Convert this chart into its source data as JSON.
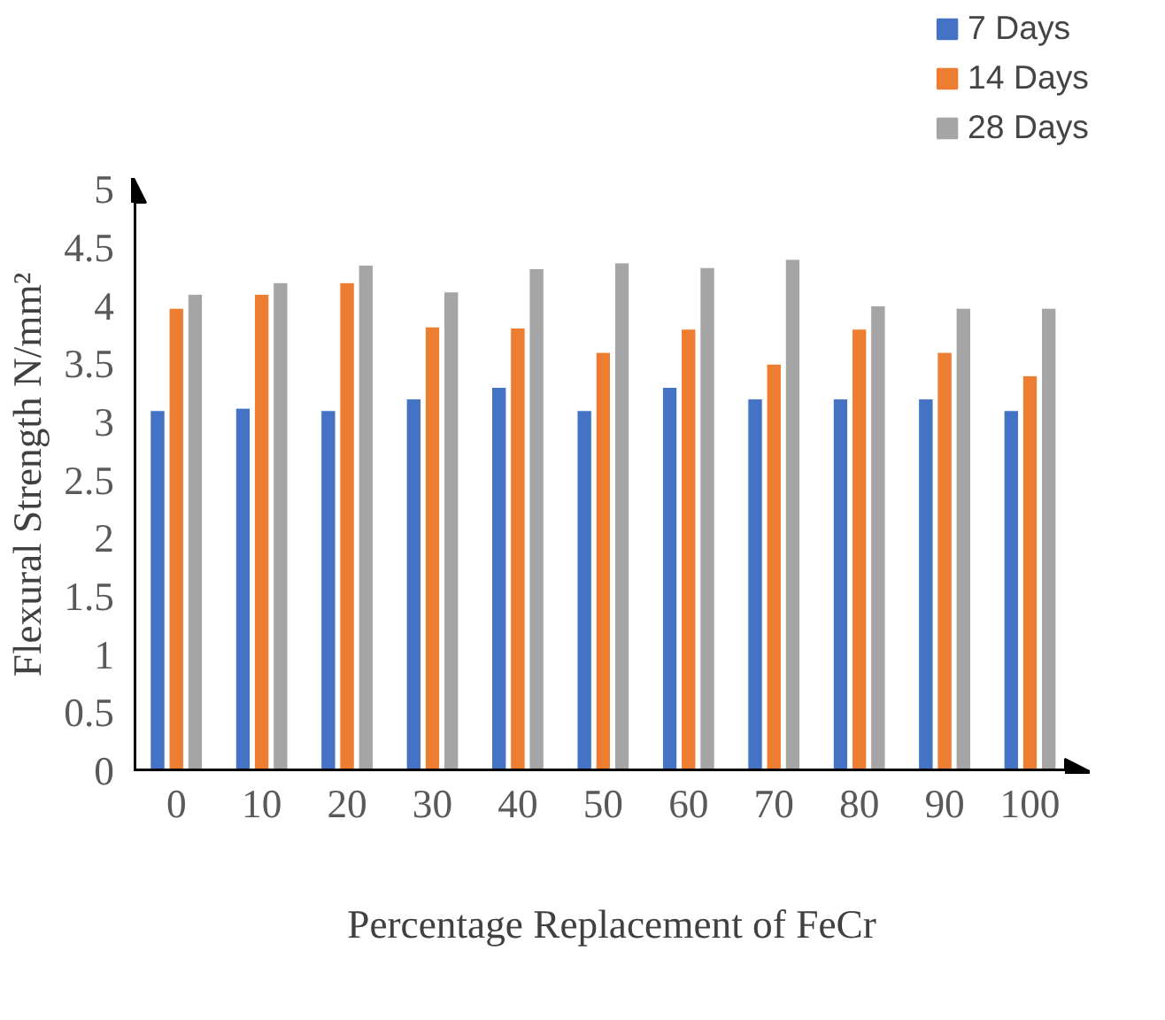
{
  "chart_data": {
    "type": "bar",
    "xlabel": "Percentage Replacement of FeCr",
    "ylabel": "Flexural Strength N/mm²",
    "categories": [
      "0",
      "10",
      "20",
      "30",
      "40",
      "50",
      "60",
      "70",
      "80",
      "90",
      "100"
    ],
    "series": [
      {
        "name": "7 Days",
        "color": "#4472c4",
        "values": [
          3.1,
          3.12,
          3.1,
          3.2,
          3.3,
          3.1,
          3.3,
          3.2,
          3.2,
          3.2,
          3.1
        ]
      },
      {
        "name": "14 Days",
        "color": "#ed7d31",
        "values": [
          3.98,
          4.1,
          4.2,
          3.82,
          3.81,
          3.6,
          3.8,
          3.5,
          3.8,
          3.6,
          3.4
        ]
      },
      {
        "name": "28 Days",
        "color": "#a5a5a5",
        "values": [
          4.1,
          4.2,
          4.35,
          4.12,
          4.32,
          4.37,
          4.33,
          4.4,
          4.0,
          3.98,
          3.98
        ]
      }
    ],
    "ylim": [
      0,
      5.1
    ],
    "yticks": [
      0,
      {
        "value": 0.5,
        "label": "0.5"
      },
      1,
      {
        "value": 1.5,
        "label": "1.5"
      },
      2,
      {
        "value": 2.5,
        "label": "2.5"
      },
      3,
      {
        "value": 3.5,
        "label": "3.5"
      },
      4,
      {
        "value": 4.5,
        "label": "4.5"
      },
      5
    ],
    "grid": false,
    "legend": "top right"
  }
}
